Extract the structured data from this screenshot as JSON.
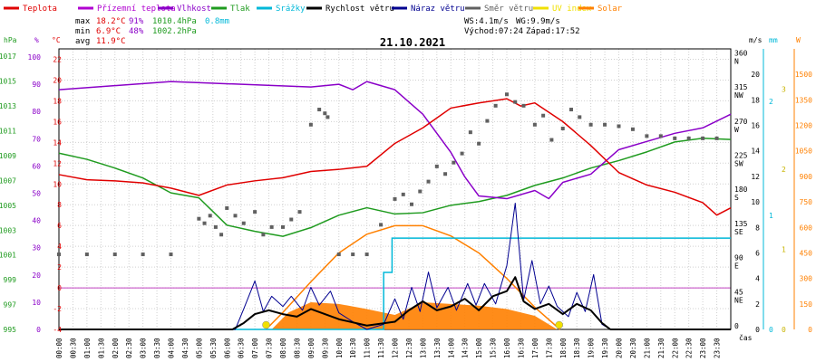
{
  "legend": [
    {
      "label": "Teplota",
      "color": "#e00000"
    },
    {
      "label": "Přízemní teplota",
      "color": "#b000d0"
    },
    {
      "label": "Vlhkost",
      "color": "#8a00c8"
    },
    {
      "label": "Tlak",
      "color": "#1f9b1f"
    },
    {
      "label": "Srážky",
      "color": "#00b8d8"
    },
    {
      "label": "Rychlost větru",
      "color": "#000000"
    },
    {
      "label": "Náraz větru",
      "color": "#000090"
    },
    {
      "label": "Směr větru",
      "color": "#606060"
    },
    {
      "label": "UV index",
      "color": "#f0e000"
    },
    {
      "label": "Solar",
      "color": "#ff8000"
    }
  ],
  "stats": {
    "max_label": "max",
    "max_temp": "18.2°C",
    "max_hum": "91%",
    "max_press": "1010.4hPa",
    "max_rain": "0.8mm",
    "min_label": "min",
    "min_temp": "6.9°C",
    "min_hum": "48%",
    "min_press": "1002.2hPa",
    "avg_label": "avg",
    "avg_temp": "11.9°C"
  },
  "wind_info": {
    "ws": "WS:4.1m/s",
    "wg": "WG:9.9m/s",
    "sunrise": "Východ:07:24",
    "sunset": "Západ:17:52"
  },
  "chart_data": {
    "type": "line",
    "title": "21.10.2021",
    "x_unit_label": "čas",
    "x_ticks": [
      "00:00",
      "00:30",
      "01:00",
      "01:30",
      "02:00",
      "02:30",
      "03:00",
      "03:30",
      "04:00",
      "04:30",
      "05:00",
      "05:30",
      "06:00",
      "06:30",
      "07:00",
      "07:30",
      "08:00",
      "08:30",
      "09:00",
      "09:30",
      "10:00",
      "10:30",
      "11:00",
      "11:30",
      "12:00",
      "12:30",
      "13:00",
      "13:30",
      "14:00",
      "14:30",
      "15:00",
      "15:30",
      "16:00",
      "16:30",
      "17:00",
      "17:30",
      "18:00",
      "18:30",
      "19:00",
      "19:30",
      "20:00",
      "20:30",
      "21:00",
      "21:30",
      "22:00",
      "22:30",
      "23:00",
      "23:30"
    ],
    "axes": {
      "hpa": {
        "label": "hPa",
        "ticks": [
          "995",
          "997",
          "999",
          "1001",
          "1003",
          "1005",
          "1007",
          "1009",
          "1011",
          "1013",
          "1015",
          "1017"
        ],
        "color": "#1f9b1f"
      },
      "pct": {
        "label": "%",
        "ticks": [
          "0",
          "10",
          "20",
          "30",
          "40",
          "50",
          "60",
          "70",
          "80",
          "90",
          "100"
        ],
        "color": "#8a00c8"
      },
      "temp": {
        "label": "°C",
        "ticks": [
          "-4",
          "-2",
          "0",
          "2",
          "4",
          "6",
          "8",
          "10",
          "12",
          "14",
          "16",
          "18",
          "20",
          "22"
        ],
        "color": "#e00000"
      },
      "dir": {
        "label": "",
        "ticks": [
          "0",
          "45",
          "90",
          "135",
          "180",
          "225",
          "270",
          "315",
          "360"
        ],
        "sub": [
          "",
          "NE",
          "E",
          "SE",
          "S",
          "SW",
          "W",
          "NW",
          "N"
        ],
        "color": "#000000"
      },
      "ms": {
        "label": "m/s",
        "ticks": [
          "0",
          "2",
          "4",
          "6",
          "8",
          "10",
          "12",
          "14",
          "16",
          "18",
          "20"
        ],
        "color": "#000000"
      },
      "mm": {
        "label": "mm",
        "ticks": [
          "0",
          "1",
          "2"
        ],
        "color": "#00b8d8"
      },
      "w": {
        "label": "W",
        "ticks": [
          "0",
          "150",
          "300",
          "450",
          "600",
          "750",
          "900",
          "1050",
          "1200",
          "1350",
          "1500"
        ],
        "color": "#ff8000"
      },
      "uv": {
        "ticks": [
          "0",
          "1",
          "2",
          "3"
        ],
        "color": "#c8b400"
      }
    },
    "series": {
      "temperature_c": [
        [
          0,
          10.9
        ],
        [
          1,
          10.4
        ],
        [
          2,
          10.3
        ],
        [
          3,
          10.1
        ],
        [
          4,
          9.6
        ],
        [
          5,
          8.9
        ],
        [
          6,
          9.9
        ],
        [
          7,
          10.3
        ],
        [
          8,
          10.6
        ],
        [
          9,
          11.2
        ],
        [
          10,
          11.4
        ],
        [
          11,
          11.7
        ],
        [
          12,
          13.9
        ],
        [
          13,
          15.4
        ],
        [
          14,
          17.3
        ],
        [
          15,
          17.8
        ],
        [
          16,
          18.2
        ],
        [
          16.5,
          17.5
        ],
        [
          17,
          17.8
        ],
        [
          18,
          16.0
        ],
        [
          19,
          13.7
        ],
        [
          20,
          11.1
        ],
        [
          21,
          9.9
        ],
        [
          22,
          9.2
        ],
        [
          23,
          8.2
        ],
        [
          23.5,
          7.0
        ],
        [
          24,
          7.7
        ]
      ],
      "humidity_pct": [
        [
          0,
          88
        ],
        [
          4,
          91
        ],
        [
          9,
          89
        ],
        [
          10,
          90
        ],
        [
          10.5,
          88
        ],
        [
          11,
          91
        ],
        [
          12,
          88
        ],
        [
          13,
          79
        ],
        [
          14,
          65
        ],
        [
          14.5,
          56
        ],
        [
          15,
          49
        ],
        [
          16,
          48
        ],
        [
          17,
          51
        ],
        [
          17.5,
          48
        ],
        [
          18,
          54
        ],
        [
          19,
          57
        ],
        [
          20,
          66
        ],
        [
          21,
          69
        ],
        [
          22,
          72
        ],
        [
          23,
          74
        ],
        [
          24,
          79
        ]
      ],
      "pressure_hpa": [
        [
          0,
          1009.2
        ],
        [
          1,
          1008.7
        ],
        [
          2,
          1008.0
        ],
        [
          3,
          1007.2
        ],
        [
          4,
          1006.0
        ],
        [
          5,
          1005.6
        ],
        [
          5.5,
          1004.5
        ],
        [
          6,
          1003.4
        ],
        [
          7,
          1002.9
        ],
        [
          8,
          1002.5
        ],
        [
          9,
          1003.2
        ],
        [
          10,
          1004.2
        ],
        [
          11,
          1004.8
        ],
        [
          12,
          1004.3
        ],
        [
          13,
          1004.4
        ],
        [
          14,
          1005.0
        ],
        [
          15,
          1005.3
        ],
        [
          16,
          1005.8
        ],
        [
          17,
          1006.6
        ],
        [
          18,
          1007.2
        ],
        [
          19,
          1008.0
        ],
        [
          20,
          1008.6
        ],
        [
          21,
          1009.3
        ],
        [
          22,
          1010.1
        ],
        [
          23,
          1010.4
        ],
        [
          24,
          1010.3
        ]
      ],
      "rain_mm": [
        [
          0,
          0
        ],
        [
          11,
          0
        ],
        [
          11.6,
          0.5
        ],
        [
          11.9,
          0.8
        ],
        [
          24,
          0.8
        ]
      ],
      "wind_speed_ms": [
        [
          0,
          0
        ],
        [
          6.2,
          0
        ],
        [
          6.6,
          0.5
        ],
        [
          7,
          1.2
        ],
        [
          7.5,
          1.5
        ],
        [
          8,
          1.2
        ],
        [
          8.5,
          1.0
        ],
        [
          9,
          1.6
        ],
        [
          9.5,
          1.2
        ],
        [
          10,
          0.8
        ],
        [
          11,
          0.3
        ],
        [
          12,
          0.6
        ],
        [
          12.5,
          1.5
        ],
        [
          13,
          2.2
        ],
        [
          13.5,
          1.5
        ],
        [
          14,
          1.8
        ],
        [
          14.5,
          2.4
        ],
        [
          15,
          1.5
        ],
        [
          15.5,
          2.6
        ],
        [
          16,
          3.0
        ],
        [
          16.3,
          4.1
        ],
        [
          16.6,
          2.2
        ],
        [
          17,
          1.6
        ],
        [
          17.5,
          2.0
        ],
        [
          18,
          1.2
        ],
        [
          18.5,
          2.0
        ],
        [
          19,
          1.5
        ],
        [
          19.4,
          0.5
        ],
        [
          19.7,
          0
        ],
        [
          24,
          0
        ]
      ],
      "wind_gust_ms": [
        [
          0,
          0
        ],
        [
          6.3,
          0
        ],
        [
          6.6,
          1.6
        ],
        [
          7,
          3.8
        ],
        [
          7.3,
          1.4
        ],
        [
          7.6,
          2.6
        ],
        [
          8,
          1.8
        ],
        [
          8.3,
          2.6
        ],
        [
          8.7,
          1.5
        ],
        [
          9,
          3.3
        ],
        [
          9.3,
          1.9
        ],
        [
          9.7,
          3.0
        ],
        [
          10,
          1.3
        ],
        [
          10.5,
          0.6
        ],
        [
          11,
          0
        ],
        [
          11.6,
          0.4
        ],
        [
          12,
          2.4
        ],
        [
          12.3,
          0.8
        ],
        [
          12.6,
          3.3
        ],
        [
          12.9,
          1.4
        ],
        [
          13.2,
          4.5
        ],
        [
          13.5,
          1.7
        ],
        [
          13.9,
          3.3
        ],
        [
          14.2,
          1.5
        ],
        [
          14.6,
          3.6
        ],
        [
          14.9,
          1.9
        ],
        [
          15.2,
          3.6
        ],
        [
          15.6,
          2.0
        ],
        [
          16,
          5.0
        ],
        [
          16.3,
          9.9
        ],
        [
          16.6,
          2.3
        ],
        [
          16.9,
          5.4
        ],
        [
          17.2,
          2.0
        ],
        [
          17.5,
          3.4
        ],
        [
          17.8,
          1.8
        ],
        [
          18.2,
          1.0
        ],
        [
          18.5,
          2.9
        ],
        [
          18.8,
          1.4
        ],
        [
          19.1,
          4.3
        ],
        [
          19.4,
          0.4
        ],
        [
          19.7,
          0
        ],
        [
          24,
          0
        ]
      ],
      "solar_w": [
        [
          7.6,
          0
        ],
        [
          8.2,
          100
        ],
        [
          9,
          160
        ],
        [
          10,
          150
        ],
        [
          11,
          120
        ],
        [
          12,
          85
        ],
        [
          13,
          160
        ],
        [
          14,
          150
        ],
        [
          15,
          140
        ],
        [
          16,
          120
        ],
        [
          17,
          80
        ],
        [
          17.8,
          0
        ]
      ],
      "solar_theoretical_w": [
        [
          7.4,
          0
        ],
        [
          8,
          100
        ],
        [
          9,
          280
        ],
        [
          10,
          450
        ],
        [
          11,
          560
        ],
        [
          12,
          610
        ],
        [
          13,
          610
        ],
        [
          14,
          550
        ],
        [
          15,
          450
        ],
        [
          16,
          300
        ],
        [
          17,
          130
        ],
        [
          17.9,
          0
        ]
      ],
      "wind_dir_deg": [
        [
          0,
          99
        ],
        [
          1,
          99
        ],
        [
          2,
          99
        ],
        [
          3,
          99
        ],
        [
          4,
          99
        ],
        [
          5.0,
          146
        ],
        [
          5.2,
          140
        ],
        [
          5.4,
          150
        ],
        [
          5.6,
          135
        ],
        [
          5.8,
          125
        ],
        [
          6.0,
          160
        ],
        [
          6.3,
          150
        ],
        [
          6.6,
          140
        ],
        [
          7.0,
          155
        ],
        [
          7.3,
          125
        ],
        [
          7.6,
          135
        ],
        [
          8.0,
          135
        ],
        [
          8.3,
          145
        ],
        [
          8.6,
          155
        ],
        [
          9.0,
          270
        ],
        [
          9.3,
          290
        ],
        [
          9.5,
          285
        ],
        [
          9.6,
          280
        ],
        [
          10.0,
          99
        ],
        [
          10.5,
          99
        ],
        [
          11,
          99
        ],
        [
          11.5,
          138
        ],
        [
          12.0,
          172
        ],
        [
          12.3,
          178
        ],
        [
          12.6,
          165
        ],
        [
          12.9,
          182
        ],
        [
          13.2,
          195
        ],
        [
          13.5,
          215
        ],
        [
          13.8,
          205
        ],
        [
          14.1,
          220
        ],
        [
          14.4,
          232
        ],
        [
          14.7,
          260
        ],
        [
          15.0,
          245
        ],
        [
          15.3,
          275
        ],
        [
          15.6,
          295
        ],
        [
          16,
          310
        ],
        [
          16.3,
          300
        ],
        [
          16.6,
          295
        ],
        [
          17.0,
          270
        ],
        [
          17.3,
          282
        ],
        [
          17.6,
          250
        ],
        [
          18.0,
          265
        ],
        [
          18.3,
          290
        ],
        [
          18.6,
          280
        ],
        [
          19.0,
          270
        ],
        [
          19.5,
          270
        ],
        [
          20,
          268
        ],
        [
          20.5,
          264
        ],
        [
          21,
          255
        ],
        [
          21.5,
          255
        ],
        [
          22,
          252
        ],
        [
          22.5,
          252
        ],
        [
          23,
          252
        ],
        [
          23.5,
          252
        ]
      ]
    }
  }
}
